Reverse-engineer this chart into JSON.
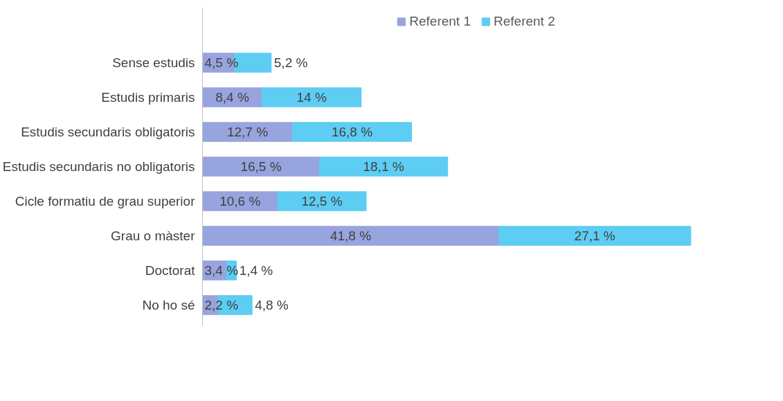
{
  "chart_data": {
    "type": "bar",
    "orientation": "horizontal",
    "stacked": true,
    "categories": [
      "Sense estudis",
      "Estudis primaris",
      "Estudis secundaris obligatoris",
      "Estudis secundaris no obligatoris",
      "Cicle formatiu de grau superior",
      "Grau o màster",
      "Doctorat",
      "No ho sé"
    ],
    "series": [
      {
        "name": "Referent 1",
        "color": "#98a4de",
        "values": [
          4.5,
          8.4,
          12.7,
          16.5,
          10.6,
          41.8,
          3.4,
          2.2
        ],
        "value_labels": [
          "4,5 %",
          "8,4 %",
          "12,7 %",
          "16,5 %",
          "10,6 %",
          "41,8 %",
          "3,4 %",
          "2,2 %"
        ]
      },
      {
        "name": "Referent 2",
        "color": "#5dcdf3",
        "values": [
          5.2,
          14,
          16.8,
          18.1,
          12.5,
          27.1,
          1.4,
          4.8
        ],
        "value_labels": [
          "5,2 %",
          "14 %",
          "16,8 %",
          "18,1 %",
          "12,5 %",
          "27,1 %",
          "1,4 %",
          "4,8 %"
        ]
      }
    ],
    "tick_labels": "y",
    "legend": "top",
    "grid": false
  }
}
